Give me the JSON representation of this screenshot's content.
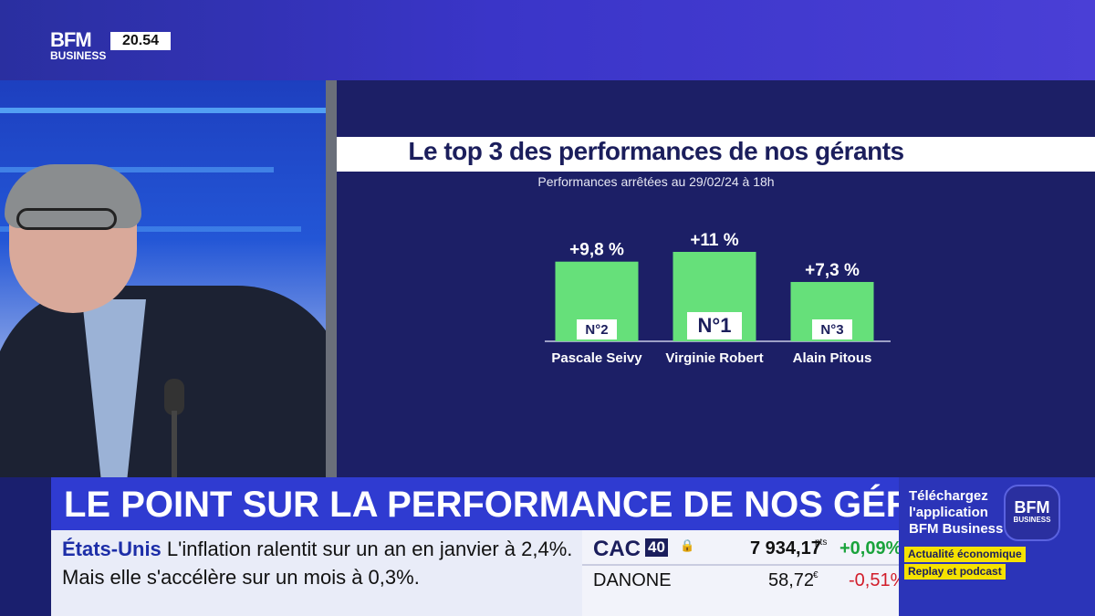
{
  "channel": {
    "logo_top": "BFM",
    "logo_bottom": "BUSINESS",
    "time": "20.54"
  },
  "chart": {
    "title": "Le top 3 des performances de nos gérants",
    "subtitle": "Performances arrêtées au 29/02/24 à 18h"
  },
  "chart_data": {
    "type": "bar",
    "title": "Le top 3 des performances de nos gérants",
    "subtitle": "Performances arrêtées au 29/02/24 à 18h",
    "categories": [
      "Pascale Seivy",
      "Virginie Robert",
      "Alain Pitous"
    ],
    "values": [
      9.8,
      11,
      7.3
    ],
    "value_labels": [
      "+9,8 %",
      "+11 %",
      "+7,3 %"
    ],
    "ranks": [
      "N°2",
      "N°1",
      "N°3"
    ],
    "bar_color": "#66e07a",
    "ylim": [
      0,
      11
    ],
    "xlabel": "",
    "ylabel": ""
  },
  "headline": "LE POINT SUR LA PERFORMANCE DE NOS GÉRANTS",
  "ticker": {
    "source": "États-Unis",
    "line1": "L'inflation ralentit sur un an en janvier à 2,4%.",
    "line2": "Mais elle s'accélère sur un mois à 0,3%."
  },
  "market": {
    "index_name": "CAC",
    "index_tag": "40",
    "lock_icon": "lock-icon",
    "index_value": "7 934,17",
    "index_unit": "pts",
    "index_change": "+0,09%",
    "stock_name": "DANONE",
    "stock_value": "58,72",
    "stock_unit": "€",
    "stock_change": "-0,51%",
    "up_color": "#1aa33c",
    "down_color": "#d21d2a"
  },
  "promo": {
    "line1": "Téléchargez",
    "line2": "l'application",
    "line3": "BFM Business",
    "logo_top": "BFM",
    "logo_bottom": "BUSINESS",
    "tag1": "Actualité économique",
    "tag2": "Replay et podcast"
  }
}
